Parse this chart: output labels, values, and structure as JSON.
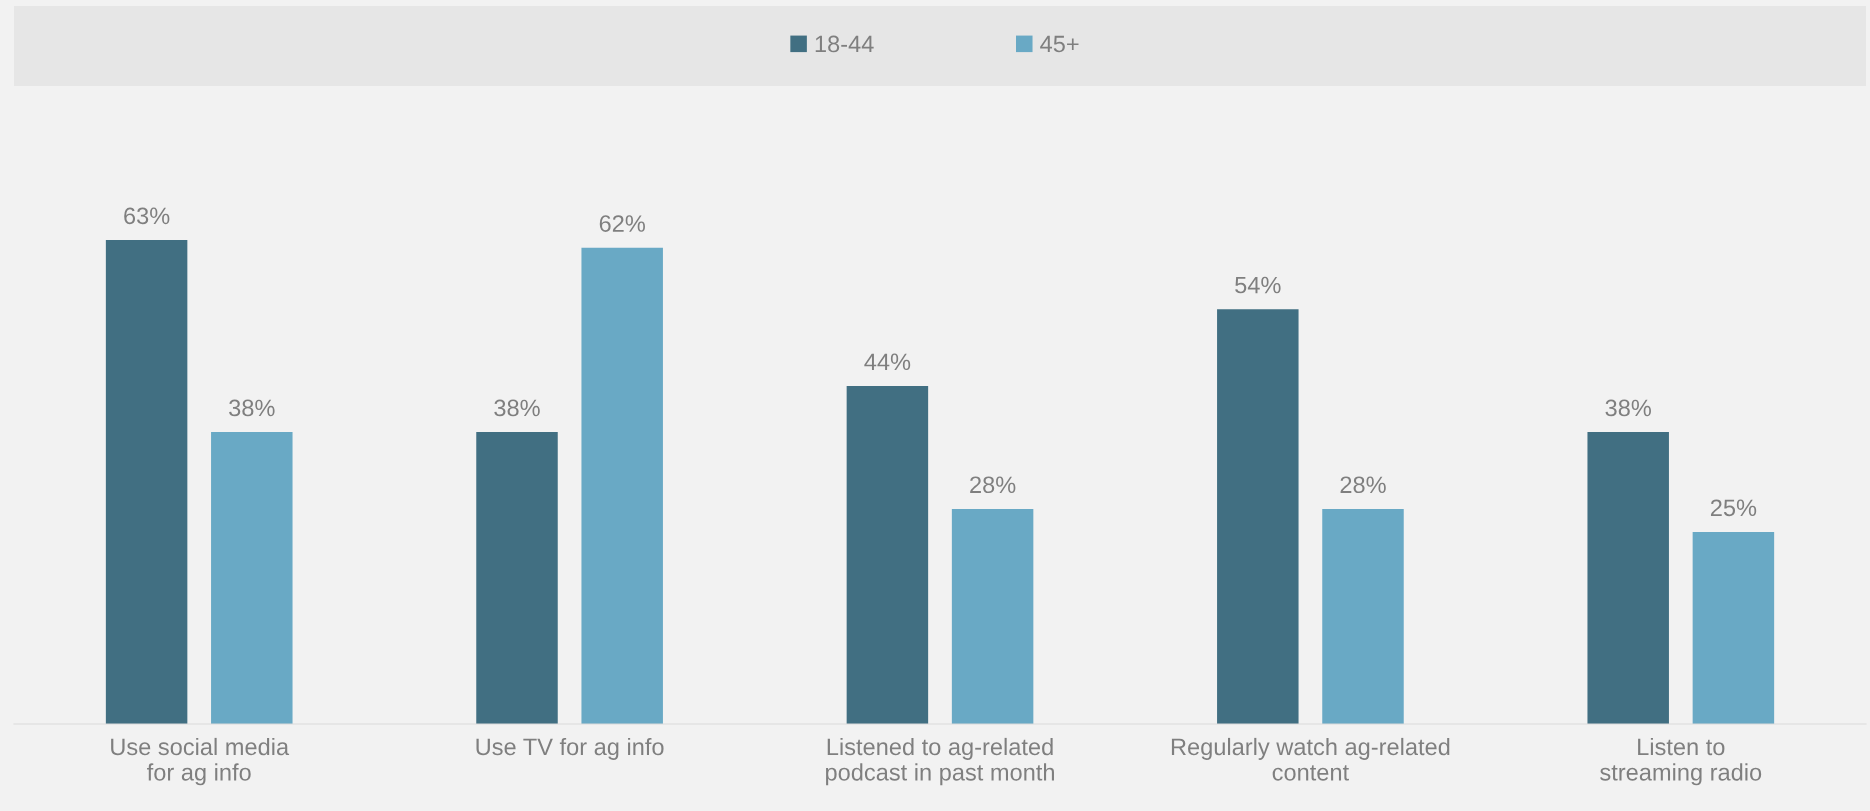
{
  "chart_data": {
    "type": "bar",
    "categories": [
      "Use social media\nfor ag info",
      "Use TV for ag info",
      "Listened to ag-related\npodcast in past month",
      "Regularly watch ag-related\ncontent",
      "Listen to\nstreaming radio"
    ],
    "series": [
      {
        "name": "18-44",
        "color": "#416f82",
        "values": [
          63,
          38,
          44,
          54,
          38
        ],
        "value_labels": [
          "63%",
          "38%",
          "44%",
          "54%",
          "38%"
        ]
      },
      {
        "name": "45+",
        "color": "#69a9c5",
        "values": [
          38,
          62,
          28,
          28,
          25
        ],
        "value_labels": [
          "38%",
          "62%",
          "28%",
          "28%",
          "25%"
        ]
      }
    ],
    "legend": "top",
    "grid": false
  }
}
